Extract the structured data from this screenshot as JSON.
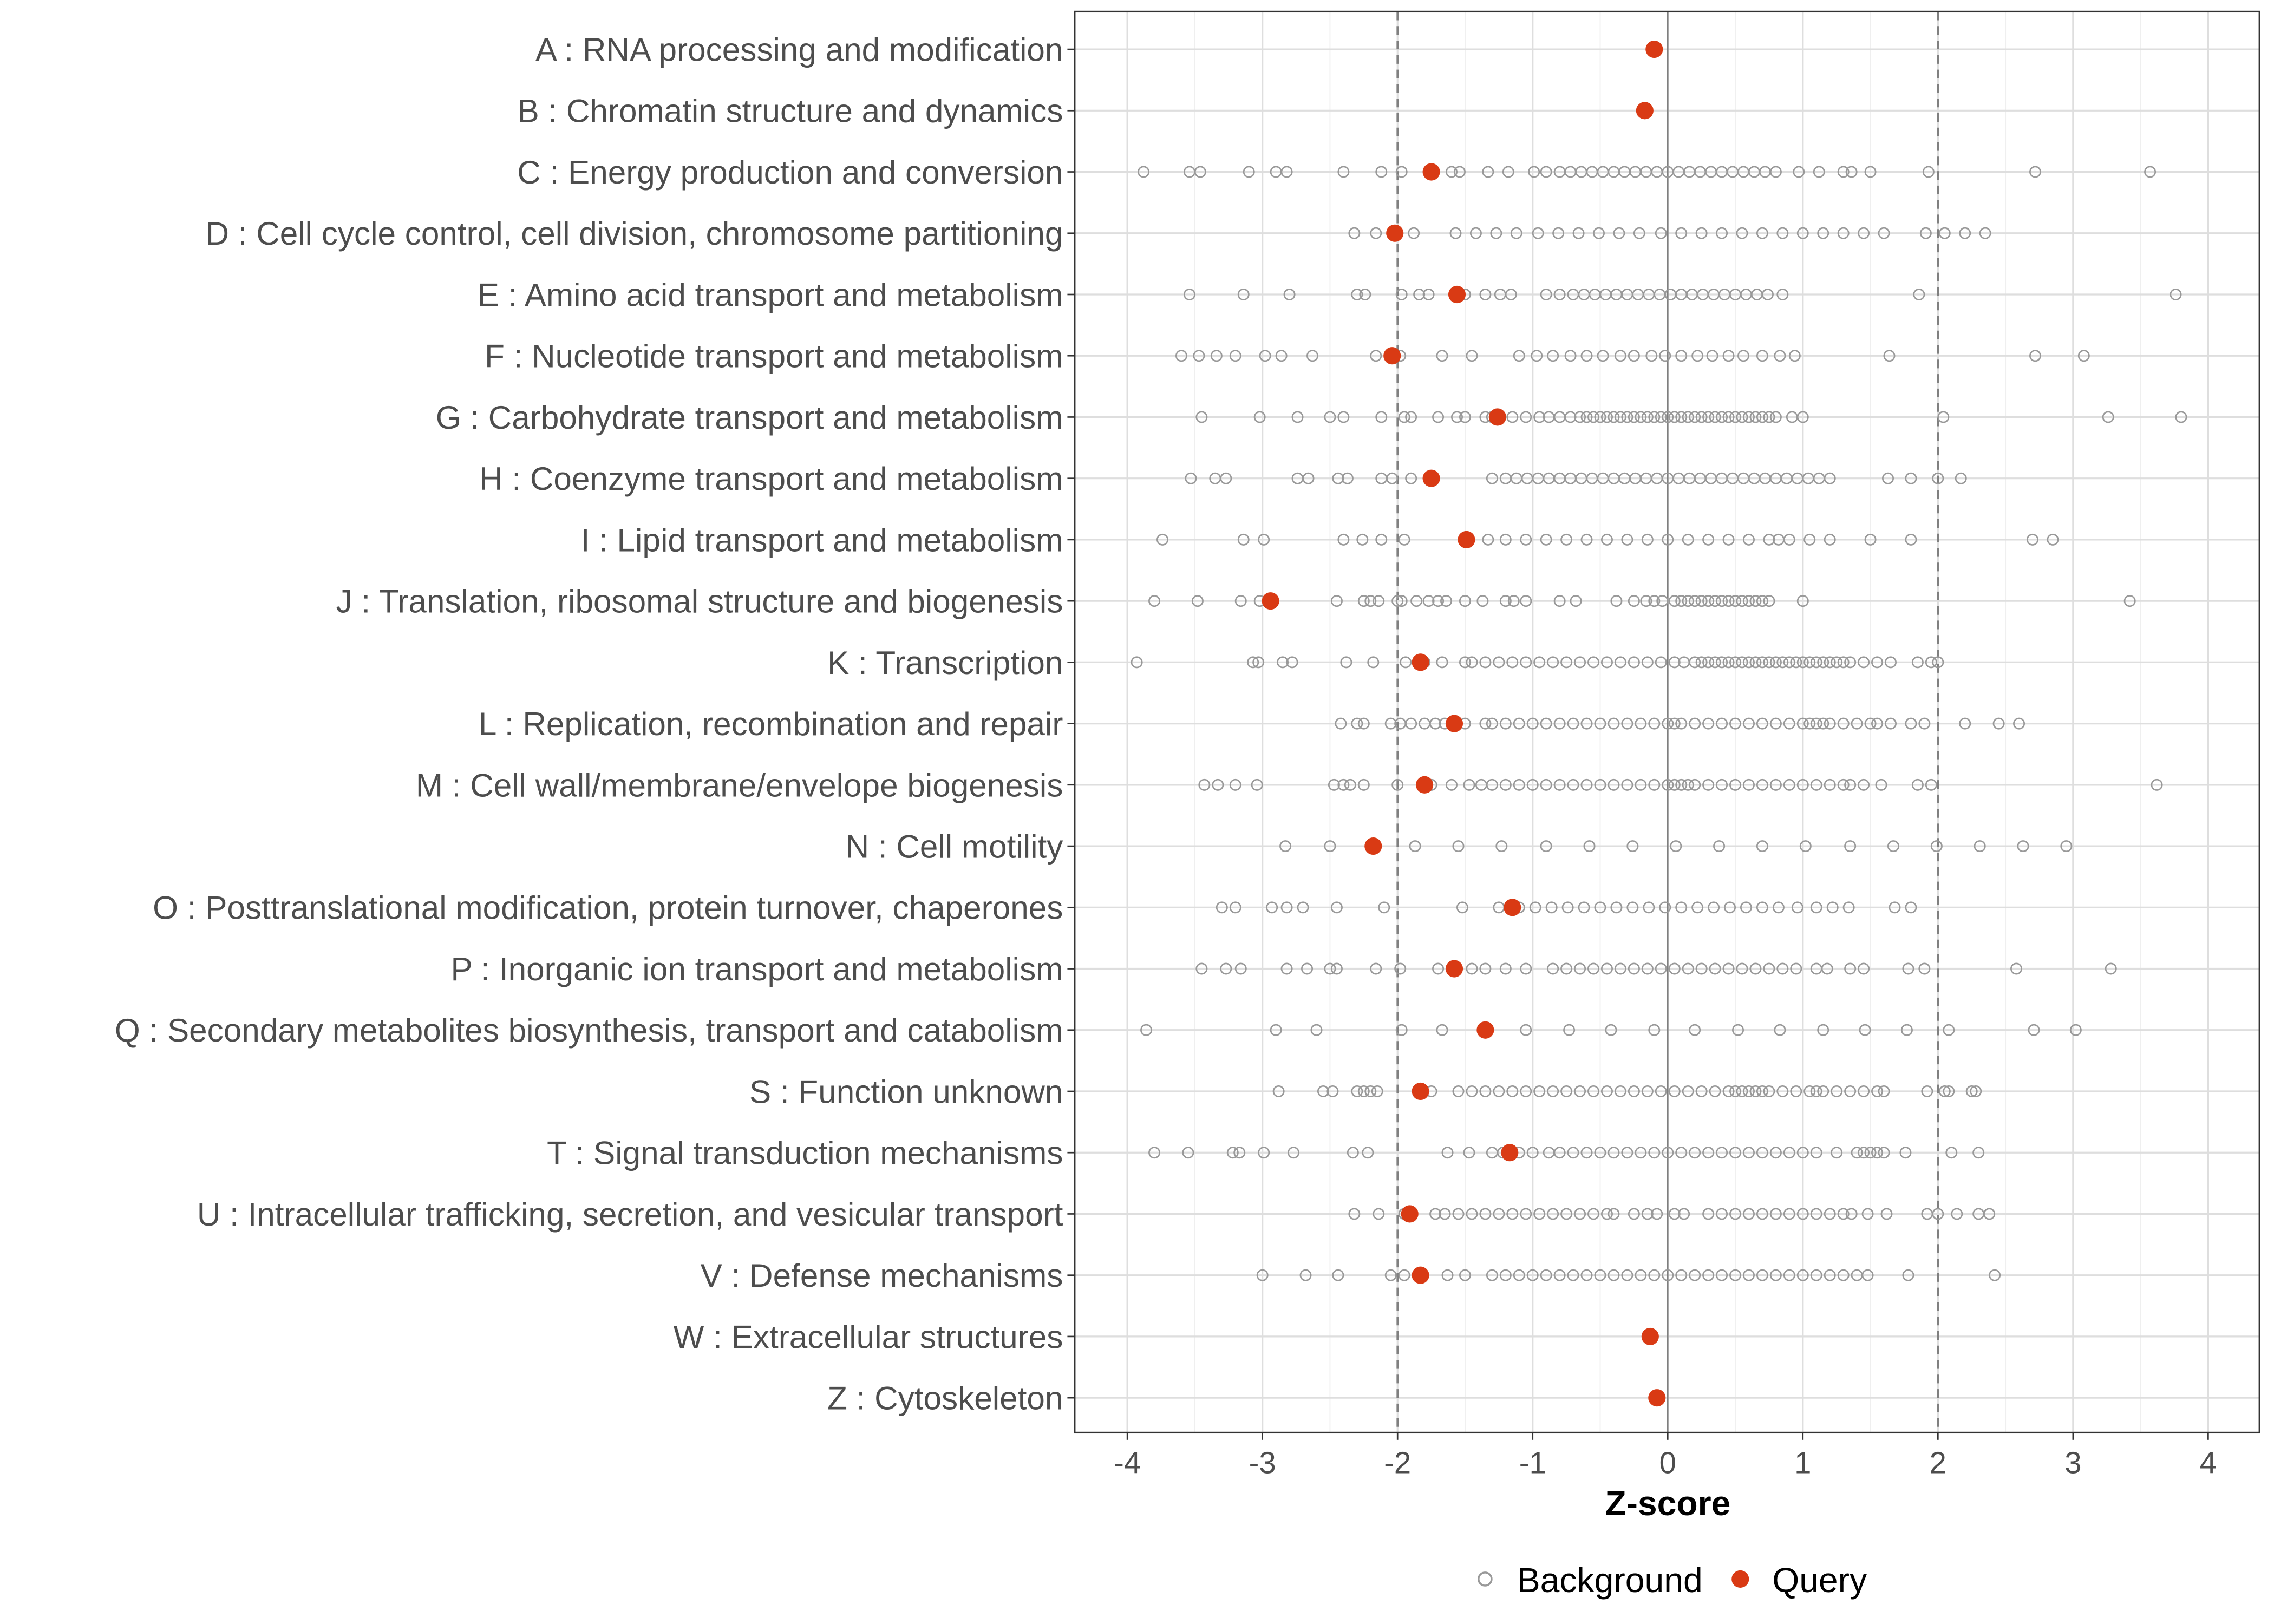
{
  "chart_data": {
    "type": "scatter",
    "title": "",
    "xlabel": "Z-score",
    "ylabel": "",
    "xlim": [
      -4.39,
      4.38
    ],
    "xticks": [
      -4,
      -3,
      -2,
      -1,
      0,
      1,
      2,
      3,
      4
    ],
    "xtick_labels": [
      "-4",
      "-3",
      "-2",
      "-1",
      "0",
      "1",
      "2",
      "3",
      "4"
    ],
    "reference_lines": {
      "solid": [
        0
      ],
      "dashed": [
        -2,
        2
      ]
    },
    "grid": true,
    "legend": {
      "placement": "bottom",
      "entries": [
        "Background",
        "Query"
      ]
    },
    "colors": {
      "background": "#999999",
      "query": "#d93a14"
    },
    "categories": [
      {
        "label": "A : RNA processing and modification",
        "query": -0.1,
        "background": []
      },
      {
        "label": "B : Chromatin structure and dynamics",
        "query": -0.17,
        "background": []
      },
      {
        "label": "C : Energy production and conversion",
        "query": -1.75,
        "background": [
          -3.88,
          -3.54,
          -3.46,
          -3.1,
          -2.9,
          -2.82,
          -2.4,
          -2.12,
          -1.97,
          -1.6,
          -1.54,
          -1.33,
          -1.18,
          -0.99,
          -0.9,
          -0.8,
          -0.72,
          -0.64,
          -0.56,
          -0.48,
          -0.4,
          -0.32,
          -0.24,
          -0.16,
          -0.08,
          0,
          0.08,
          0.16,
          0.24,
          0.32,
          0.4,
          0.48,
          0.56,
          0.64,
          0.72,
          0.8,
          0.97,
          1.12,
          1.3,
          1.36,
          1.5,
          1.93,
          2.72,
          3.57
        ]
      },
      {
        "label": "D : Cell cycle control, cell division, chromosome partitioning",
        "query": -2.02,
        "background": [
          -2.32,
          -2.16,
          -2.0,
          -1.88,
          -1.57,
          -1.42,
          -1.27,
          -1.12,
          -0.96,
          -0.81,
          -0.66,
          -0.51,
          -0.36,
          -0.21,
          -0.05,
          0.1,
          0.25,
          0.4,
          0.55,
          0.7,
          0.85,
          1.0,
          1.15,
          1.3,
          1.45,
          1.6,
          1.91,
          2.05,
          2.2,
          2.35
        ]
      },
      {
        "label": "E : Amino acid transport and metabolism",
        "query": -1.56,
        "background": [
          -3.54,
          -3.14,
          -2.8,
          -2.3,
          -2.24,
          -1.97,
          -1.84,
          -1.77,
          -1.5,
          -1.35,
          -1.24,
          -1.16,
          -0.9,
          -0.8,
          -0.7,
          -0.62,
          -0.54,
          -0.46,
          -0.38,
          -0.3,
          -0.22,
          -0.14,
          -0.06,
          0.02,
          0.1,
          0.18,
          0.26,
          0.34,
          0.42,
          0.5,
          0.58,
          0.66,
          0.74,
          0.85,
          1.86,
          3.76
        ]
      },
      {
        "label": "F : Nucleotide transport and metabolism",
        "query": -2.04,
        "background": [
          -3.6,
          -3.47,
          -3.34,
          -3.2,
          -2.98,
          -2.86,
          -2.63,
          -2.16,
          -1.98,
          -1.67,
          -1.45,
          -1.1,
          -0.97,
          -0.85,
          -0.72,
          -0.6,
          -0.48,
          -0.35,
          -0.25,
          -0.12,
          -0.02,
          0.1,
          0.22,
          0.33,
          0.45,
          0.56,
          0.7,
          0.83,
          0.94,
          1.64,
          2.72,
          3.08
        ]
      },
      {
        "label": "G : Carbohydrate transport and metabolism",
        "query": -1.26,
        "background": [
          -3.45,
          -3.02,
          -2.74,
          -2.5,
          -2.4,
          -2.12,
          -1.95,
          -1.9,
          -1.7,
          -1.56,
          -1.5,
          -1.35,
          -1.3,
          -1.15,
          -1.05,
          -0.95,
          -0.88,
          -0.8,
          -0.72,
          -0.65,
          -0.6,
          -0.55,
          -0.5,
          -0.45,
          -0.4,
          -0.35,
          -0.3,
          -0.25,
          -0.2,
          -0.15,
          -0.1,
          -0.05,
          0,
          0.05,
          0.1,
          0.15,
          0.2,
          0.25,
          0.3,
          0.35,
          0.4,
          0.45,
          0.5,
          0.55,
          0.6,
          0.65,
          0.7,
          0.75,
          0.8,
          0.92,
          1.0,
          2.04,
          3.26,
          3.8
        ]
      },
      {
        "label": "H : Coenzyme transport and metabolism",
        "query": -1.75,
        "background": [
          -3.53,
          -3.35,
          -3.27,
          -2.74,
          -2.66,
          -2.44,
          -2.37,
          -2.12,
          -2.04,
          -1.9,
          -1.3,
          -1.2,
          -1.12,
          -1.04,
          -0.96,
          -0.88,
          -0.8,
          -0.72,
          -0.64,
          -0.56,
          -0.48,
          -0.4,
          -0.32,
          -0.24,
          -0.16,
          -0.08,
          0,
          0.08,
          0.16,
          0.24,
          0.32,
          0.4,
          0.48,
          0.56,
          0.64,
          0.72,
          0.8,
          0.88,
          0.96,
          1.04,
          1.12,
          1.2,
          1.63,
          1.8,
          2.0,
          2.17
        ]
      },
      {
        "label": "I : Lipid transport and metabolism",
        "query": -1.49,
        "background": [
          -3.74,
          -3.14,
          -2.99,
          -2.4,
          -2.26,
          -2.12,
          -1.95,
          -1.33,
          -1.2,
          -1.05,
          -0.9,
          -0.75,
          -0.6,
          -0.45,
          -0.3,
          -0.15,
          0.0,
          0.15,
          0.3,
          0.45,
          0.6,
          0.75,
          0.82,
          0.9,
          1.05,
          1.2,
          1.5,
          1.8,
          2.7,
          2.85
        ]
      },
      {
        "label": "J : Translation, ribosomal structure and biogenesis",
        "query": -2.94,
        "background": [
          -3.8,
          -3.48,
          -3.16,
          -3.02,
          -2.94,
          -2.45,
          -2.25,
          -2.2,
          -2.14,
          -2.0,
          -1.97,
          -1.86,
          -1.77,
          -1.7,
          -1.64,
          -1.5,
          -1.37,
          -1.2,
          -1.14,
          -1.05,
          -0.8,
          -0.68,
          -0.38,
          -0.25,
          -0.16,
          -0.1,
          -0.04,
          0.05,
          0.1,
          0.15,
          0.2,
          0.25,
          0.3,
          0.35,
          0.4,
          0.45,
          0.5,
          0.55,
          0.6,
          0.65,
          0.7,
          0.75,
          1.0,
          3.42
        ]
      },
      {
        "label": "K : Transcription",
        "query": -1.83,
        "background": [
          -3.93,
          -3.07,
          -3.03,
          -2.85,
          -2.78,
          -2.38,
          -2.18,
          -1.94,
          -1.8,
          -1.67,
          -1.5,
          -1.45,
          -1.35,
          -1.25,
          -1.15,
          -1.05,
          -0.95,
          -0.85,
          -0.75,
          -0.65,
          -0.55,
          -0.45,
          -0.35,
          -0.25,
          -0.15,
          -0.05,
          0.05,
          0.12,
          0.2,
          0.25,
          0.3,
          0.35,
          0.4,
          0.45,
          0.5,
          0.55,
          0.6,
          0.65,
          0.7,
          0.75,
          0.8,
          0.85,
          0.9,
          0.95,
          1.0,
          1.05,
          1.1,
          1.15,
          1.2,
          1.25,
          1.3,
          1.35,
          1.45,
          1.55,
          1.65,
          1.85,
          1.95,
          2.0
        ]
      },
      {
        "label": "L : Replication, recombination and repair",
        "query": -1.58,
        "background": [
          -2.42,
          -2.3,
          -2.25,
          -2.05,
          -1.98,
          -1.9,
          -1.8,
          -1.72,
          -1.65,
          -1.5,
          -1.35,
          -1.3,
          -1.2,
          -1.1,
          -1.0,
          -0.9,
          -0.8,
          -0.7,
          -0.6,
          -0.5,
          -0.4,
          -0.3,
          -0.2,
          -0.1,
          0,
          0.05,
          0.1,
          0.2,
          0.3,
          0.4,
          0.5,
          0.6,
          0.7,
          0.8,
          0.9,
          1.0,
          1.05,
          1.1,
          1.15,
          1.2,
          1.3,
          1.4,
          1.5,
          1.55,
          1.65,
          1.8,
          1.9,
          2.2,
          2.45,
          2.6
        ]
      },
      {
        "label": "M : Cell wall/membrane/envelope biogenesis",
        "query": -1.8,
        "background": [
          -3.43,
          -3.33,
          -3.2,
          -3.04,
          -2.47,
          -2.4,
          -2.35,
          -2.25,
          -2.0,
          -1.75,
          -1.6,
          -1.47,
          -1.38,
          -1.3,
          -1.2,
          -1.1,
          -1.0,
          -0.9,
          -0.8,
          -0.7,
          -0.6,
          -0.5,
          -0.4,
          -0.3,
          -0.2,
          -0.1,
          0,
          0.05,
          0.1,
          0.15,
          0.2,
          0.3,
          0.4,
          0.5,
          0.6,
          0.7,
          0.8,
          0.9,
          1.0,
          1.1,
          1.2,
          1.3,
          1.35,
          1.45,
          1.58,
          1.85,
          1.95,
          3.62
        ]
      },
      {
        "label": "N : Cell motility",
        "query": -2.18,
        "background": [
          -2.83,
          -2.5,
          -1.87,
          -1.55,
          -1.23,
          -0.9,
          -0.58,
          -0.26,
          0.06,
          0.38,
          0.7,
          1.02,
          1.35,
          1.67,
          1.99,
          2.31,
          2.63,
          2.95
        ]
      },
      {
        "label": "O : Posttranslational modification, protein turnover, chaperones",
        "query": -1.15,
        "background": [
          -3.3,
          -3.2,
          -2.93,
          -2.82,
          -2.7,
          -2.45,
          -2.1,
          -1.52,
          -1.25,
          -1.1,
          -0.98,
          -0.86,
          -0.74,
          -0.62,
          -0.5,
          -0.38,
          -0.26,
          -0.14,
          -0.02,
          0.1,
          0.22,
          0.34,
          0.46,
          0.58,
          0.7,
          0.82,
          0.96,
          1.1,
          1.22,
          1.34,
          1.68,
          1.8
        ]
      },
      {
        "label": "P : Inorganic ion transport and metabolism",
        "query": -1.58,
        "background": [
          -3.45,
          -3.27,
          -3.16,
          -2.82,
          -2.67,
          -2.5,
          -2.45,
          -2.16,
          -1.98,
          -1.7,
          -1.45,
          -1.35,
          -1.2,
          -1.05,
          -0.85,
          -0.75,
          -0.65,
          -0.55,
          -0.45,
          -0.35,
          -0.25,
          -0.15,
          -0.05,
          0.05,
          0.15,
          0.25,
          0.35,
          0.45,
          0.55,
          0.65,
          0.75,
          0.85,
          0.95,
          1.1,
          1.18,
          1.35,
          1.45,
          1.78,
          1.9,
          2.58,
          3.28
        ]
      },
      {
        "label": "Q : Secondary metabolites biosynthesis, transport and catabolism",
        "query": -1.35,
        "background": [
          -3.86,
          -2.9,
          -2.6,
          -1.97,
          -1.67,
          -1.05,
          -0.73,
          -0.42,
          -0.1,
          0.2,
          0.52,
          0.83,
          1.15,
          1.46,
          1.77,
          2.08,
          2.71,
          3.02
        ]
      },
      {
        "label": "S : Function unknown",
        "query": -1.83,
        "background": [
          -2.88,
          -2.55,
          -2.48,
          -2.3,
          -2.25,
          -2.2,
          -2.15,
          -1.75,
          -1.55,
          -1.45,
          -1.35,
          -1.25,
          -1.15,
          -1.05,
          -0.95,
          -0.85,
          -0.75,
          -0.65,
          -0.55,
          -0.45,
          -0.35,
          -0.25,
          -0.15,
          -0.05,
          0.05,
          0.15,
          0.25,
          0.35,
          0.45,
          0.5,
          0.55,
          0.6,
          0.65,
          0.7,
          0.75,
          0.85,
          0.95,
          1.05,
          1.1,
          1.15,
          1.25,
          1.35,
          1.45,
          1.55,
          1.6,
          1.92,
          2.05,
          2.08,
          2.25,
          2.28
        ]
      },
      {
        "label": "T : Signal transduction mechanisms",
        "query": -1.17,
        "background": [
          -3.8,
          -3.55,
          -3.22,
          -3.17,
          -2.99,
          -2.77,
          -2.33,
          -2.22,
          -1.63,
          -1.47,
          -1.3,
          -1.22,
          -1.1,
          -1.0,
          -0.88,
          -0.8,
          -0.7,
          -0.6,
          -0.5,
          -0.4,
          -0.3,
          -0.2,
          -0.1,
          0,
          0.1,
          0.2,
          0.3,
          0.4,
          0.5,
          0.6,
          0.7,
          0.8,
          0.9,
          1.0,
          1.1,
          1.25,
          1.4,
          1.45,
          1.5,
          1.55,
          1.6,
          1.76,
          2.1,
          2.3
        ]
      },
      {
        "label": "U : Intracellular trafficking, secretion, and vesicular transport",
        "query": -1.91,
        "background": [
          -2.32,
          -2.14,
          -1.95,
          -1.72,
          -1.65,
          -1.55,
          -1.45,
          -1.35,
          -1.25,
          -1.15,
          -1.05,
          -0.95,
          -0.85,
          -0.75,
          -0.65,
          -0.55,
          -0.45,
          -0.4,
          -0.25,
          -0.15,
          -0.08,
          0.05,
          0.12,
          0.3,
          0.4,
          0.5,
          0.6,
          0.7,
          0.8,
          0.9,
          1.0,
          1.1,
          1.2,
          1.3,
          1.36,
          1.48,
          1.62,
          1.92,
          2.0,
          2.14,
          2.3,
          2.38
        ]
      },
      {
        "label": "V : Defense mechanisms",
        "query": -1.83,
        "background": [
          -3.0,
          -2.68,
          -2.44,
          -2.05,
          -1.95,
          -1.63,
          -1.5,
          -1.3,
          -1.2,
          -1.1,
          -1.0,
          -0.9,
          -0.8,
          -0.7,
          -0.6,
          -0.5,
          -0.4,
          -0.3,
          -0.2,
          -0.1,
          0.0,
          0.1,
          0.2,
          0.3,
          0.4,
          0.5,
          0.6,
          0.7,
          0.8,
          0.9,
          1.0,
          1.1,
          1.2,
          1.3,
          1.4,
          1.48,
          1.78,
          2.42
        ]
      },
      {
        "label": "W : Extracellular structures",
        "query": -0.13,
        "background": []
      },
      {
        "label": "Z : Cytoskeleton",
        "query": -0.08,
        "background": []
      }
    ]
  }
}
